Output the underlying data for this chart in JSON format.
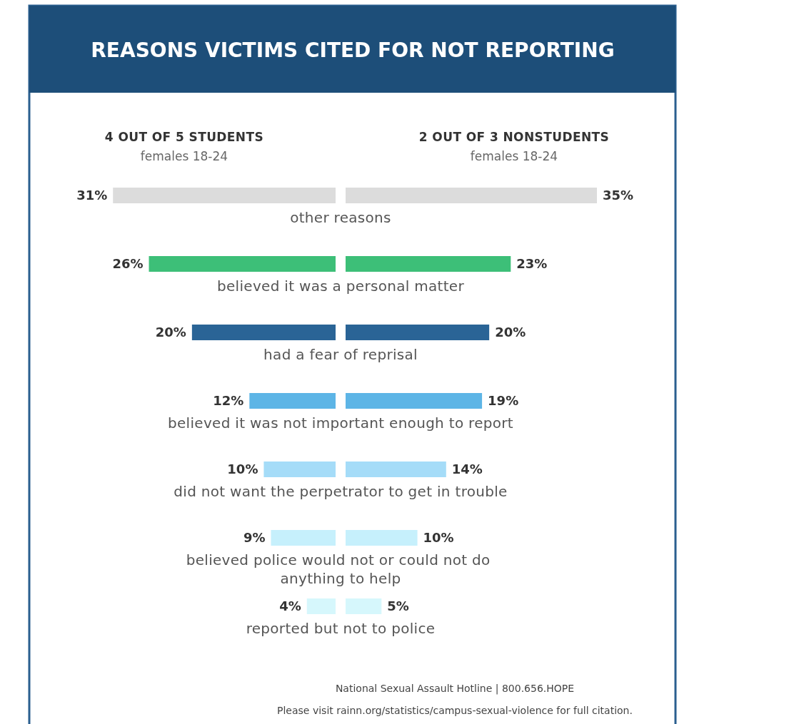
{
  "chart_data": [
    {
      "type": "other",
      "title": "REASONS VICTIMS CITED FOR NOT REPORTING"
    },
    {
      "type": "bar",
      "orientation": "horizontal",
      "title": "4 OUT OF 5 STUDENTS",
      "subtitle": "females 18-24",
      "categories": [
        "other reasons",
        "believed it was a personal matter",
        "had a fear of reprisal",
        "believed it was not important enough to report",
        "did not want the perpetrator to get in trouble",
        "believed police would not or could not do anything to help",
        "reported but not to police"
      ],
      "colors": [
        "#dcdcdc",
        "#3dbf78",
        "#2a6496",
        "#5db5e6",
        "#a5dcf8",
        "#c6f0fc",
        "#d6f7fc"
      ],
      "values": [
        31,
        26,
        20,
        12,
        10,
        9,
        4
      ],
      "value_labels": [
        "31%",
        "26%",
        "20%",
        "12%",
        "10%",
        "9%",
        "4%"
      ]
    },
    {
      "type": "bar",
      "orientation": "horizontal",
      "title": "2 OUT OF 3 NONSTUDENTS",
      "subtitle": "females 18-24",
      "categories": [
        null,
        null,
        null,
        null,
        null,
        null,
        null
      ],
      "colors": [
        "#dcdcdc",
        "#3dbf78",
        "#2a6496",
        "#5db5e6",
        "#a5dcf8",
        "#c6f0fc",
        "#d6f7fc"
      ],
      "values": [
        35,
        23,
        20,
        19,
        14,
        10,
        5
      ],
      "value_labels": [
        "35%",
        "23%",
        "20%",
        "19%",
        "14%",
        "10%",
        "5%"
      ],
      "annotations": [
        "National Sexual Assault Hotline | 800.656.HOPE",
        "Please visit rainn.org/statistics/campus-sexual-violence for full citation."
      ]
    }
  ]
}
